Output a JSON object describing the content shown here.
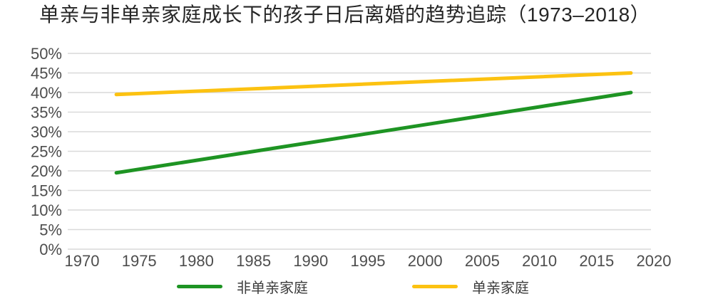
{
  "title": "单亲与非单亲家庭成长下的孩子日后离婚的趋势追踪（1973–2018）",
  "colors": {
    "background": "#ffffff",
    "title_text": "#262626",
    "axis_label": "#4d4d4d",
    "gridline": "#d9d9d9",
    "legend_label": "#3d3d3d",
    "series_green": "#1e9423",
    "series_yellow": "#fcc211"
  },
  "chart_data": {
    "type": "line",
    "title": "单亲与非单亲家庭成长下的孩子日后离婚的趋势追踪（1973–2018）",
    "x": [
      1973,
      2018
    ],
    "series": [
      {
        "id": "non-single-parent",
        "name": "非单亲家庭",
        "color": "#1e9423",
        "values": [
          19.5,
          40
        ]
      },
      {
        "id": "single-parent",
        "name": "单亲家庭",
        "color": "#fcc211",
        "values": [
          39.5,
          45
        ]
      }
    ],
    "xlabel": "",
    "ylabel": "",
    "xlim": [
      1969,
      2020
    ],
    "ylim": [
      0,
      50
    ],
    "x_ticks": [
      "1970",
      "1975",
      "1980",
      "1985",
      "1990",
      "1995",
      "2000",
      "2005",
      "2010",
      "2015",
      "2020"
    ],
    "y_ticks": [
      "0%",
      "5%",
      "10%",
      "15%",
      "20%",
      "25%",
      "30%",
      "35%",
      "40%",
      "45%",
      "50%"
    ],
    "grid": "horizontal-only",
    "legend_position": "bottom"
  }
}
